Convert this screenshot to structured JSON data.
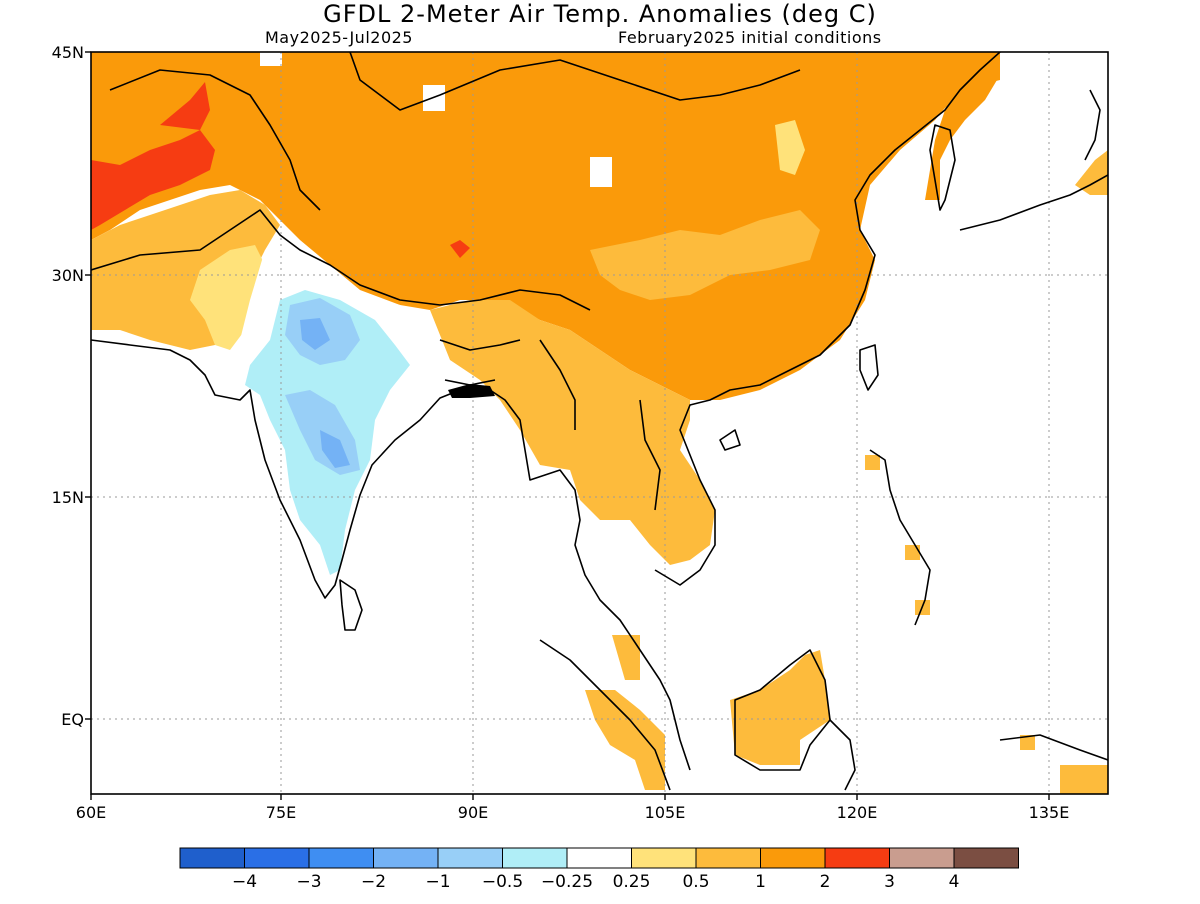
{
  "title": "GFDL 2-Meter Air Temp. Anomalies (deg C)",
  "subtitle_left": "May2025-Jul2025",
  "subtitle_right": "February2025 initial conditions",
  "lat_labels": [
    "45N",
    "30N",
    "15N",
    "EQ"
  ],
  "lon_labels": [
    "60E",
    "75E",
    "90E",
    "105E",
    "120E",
    "135E"
  ],
  "colorbar": {
    "colors": [
      "#1f5fcc",
      "#2a6fe6",
      "#3f8ef2",
      "#74b2f5",
      "#98cff7",
      "#b0eef7",
      "#ffffff",
      "#ffe27a",
      "#fdbb3c",
      "#fa9a0a",
      "#f63c12",
      "#c99d8f",
      "#7b4e42"
    ],
    "labels": [
      "-4",
      "-3",
      "-2",
      "-1",
      "-0.5",
      "-0.25",
      "0.25",
      "0.5",
      "1",
      "2",
      "3",
      "4"
    ]
  },
  "palette": {
    "deep_orange": "#fa9a0a",
    "light_orange": "#fdbb3c",
    "yellow": "#ffe27a",
    "red": "#f63c12",
    "light_blue": "#b0eef7",
    "mid_blue": "#98cff7",
    "blue": "#74b2f5"
  }
}
